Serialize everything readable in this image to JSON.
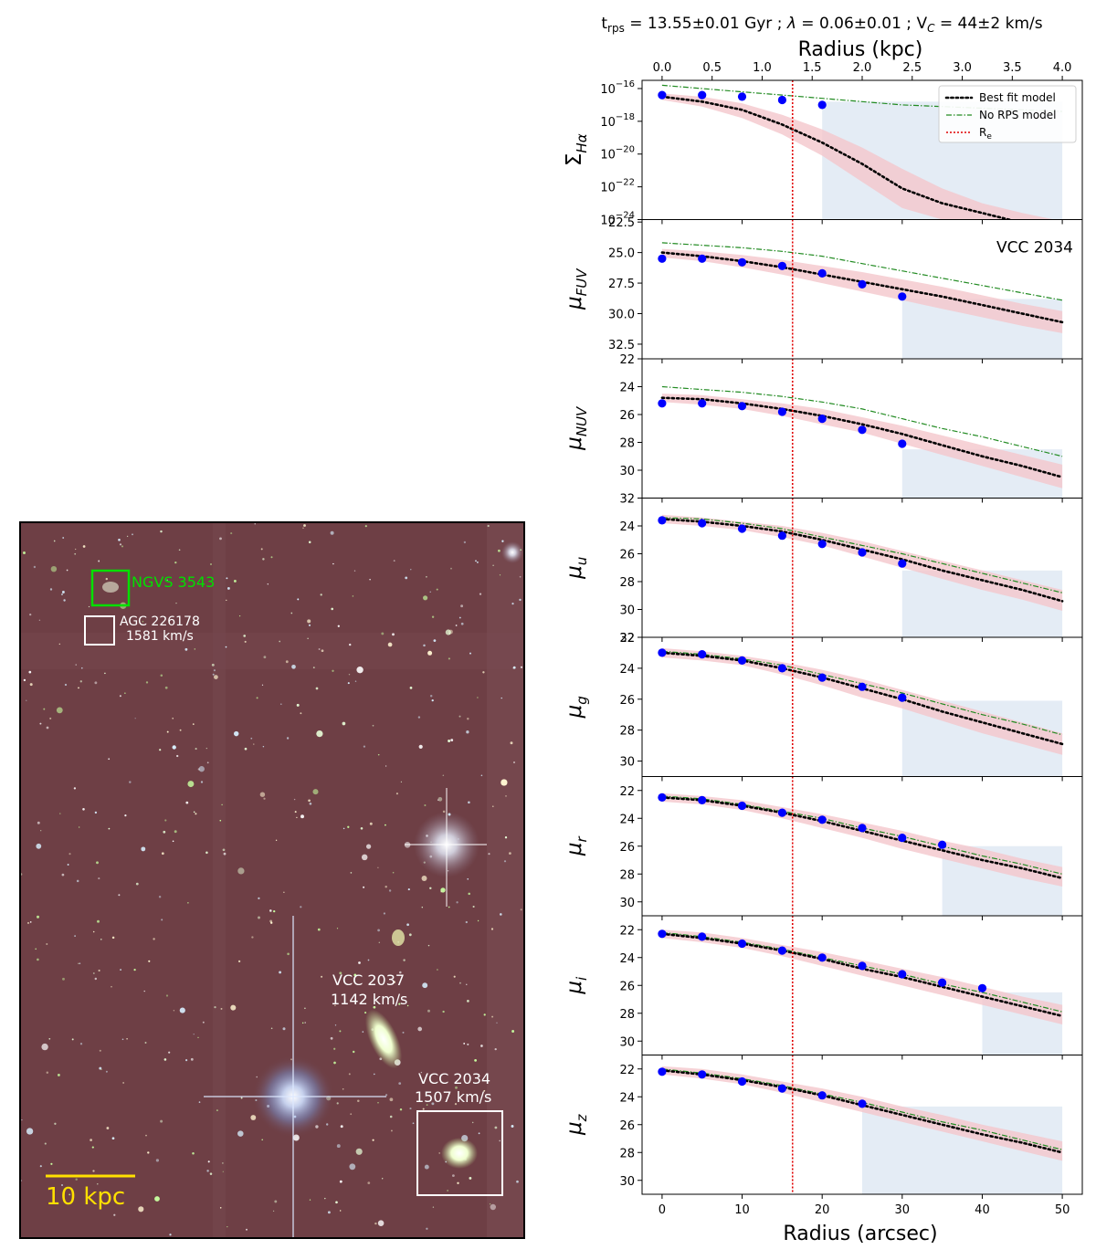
{
  "header": {
    "title": "t_rps = 13.55±0.01 Gyr ; λ = 0.06±0.01 ; V_C = 44±2 km/s",
    "title_parts": {
      "t": "t",
      "t_sub": "rps",
      "t_value": " = 13.55±0.01 Gyr ;  ",
      "lambda": "λ",
      "lambda_value": " = 0.06±0.01 ;  V",
      "v_sub": "C",
      "v_value": " = 44±2 km/s"
    }
  },
  "image_panel": {
    "scale_bar_label": "10 kpc",
    "galaxies": [
      {
        "name": "NGVS 3543",
        "velocity": "",
        "color": "#00e000"
      },
      {
        "name": "AGC 226178",
        "velocity": "1581 km/s",
        "color": "#ffffff"
      },
      {
        "name": "VCC 2037",
        "velocity": "1142 km/s",
        "color": "#ffffff"
      },
      {
        "name": "VCC 2034",
        "velocity": "1507 km/s",
        "color": "#ffffff"
      }
    ],
    "colors": {
      "background": "#6e3f45",
      "scale_bar": "#ffe000"
    }
  },
  "chart_data": {
    "type": "line",
    "x_bottom": {
      "label": "Radius (arcsec)",
      "lim": [
        -2.5,
        52.5
      ],
      "ticks": [
        0,
        10,
        20,
        30,
        40,
        50
      ]
    },
    "x_top": {
      "label": "Radius (kpc)",
      "lim": [
        -0.2,
        4.2
      ],
      "ticks": [
        "0.0",
        "0.5",
        "1.0",
        "1.5",
        "2.0",
        "2.5",
        "3.0",
        "3.5",
        "4.0"
      ]
    },
    "re_arcsec": 16.3,
    "legend": {
      "placement": "upper right",
      "entries": [
        "Best fit model",
        "No RPS model",
        "R_e"
      ]
    },
    "galaxy_label": "VCC 2034",
    "colors": {
      "data": "#0000ff",
      "best_fit": "#000000",
      "no_rps": "#228b22",
      "re_line": "#e00000",
      "uncertainty": "#f4c7cc",
      "limit_region": "#dbe6f2"
    },
    "panels": [
      {
        "id": "ha",
        "ylabel": "Σ",
        "ylabel_sub": "Hα",
        "log": true,
        "ylim": [
          -24,
          -15.5
        ],
        "ytick_labels": [
          {
            "v": -16,
            "b": "10",
            "e": "−16"
          },
          {
            "v": -18,
            "b": "10",
            "e": "−18"
          },
          {
            "v": -20,
            "b": "10",
            "e": "−20"
          },
          {
            "v": -22,
            "b": "10",
            "e": "−22"
          },
          {
            "v": -24,
            "b": "10",
            "e": "−24"
          }
        ],
        "data_x": [
          0,
          5,
          10,
          15,
          20
        ],
        "data_y": [
          -16.4,
          -16.4,
          -16.5,
          -16.7,
          -17.0
        ],
        "model_x": [
          0,
          5,
          10,
          15,
          20,
          25,
          30,
          35,
          40,
          45,
          50
        ],
        "best_fit": [
          -16.5,
          -16.8,
          -17.3,
          -18.2,
          -19.3,
          -20.6,
          -22.1,
          -23.0,
          -23.6,
          -24.2,
          -24.7
        ],
        "band_upper": [
          -16.3,
          -16.5,
          -16.9,
          -17.6,
          -18.5,
          -19.6,
          -20.9,
          -22.1,
          -23.0,
          -23.6,
          -24.1
        ],
        "band_lower": [
          -16.7,
          -17.1,
          -17.8,
          -18.8,
          -20.1,
          -21.7,
          -23.3,
          -24.0,
          -24.4,
          -24.8,
          -25.2
        ],
        "no_rps": [
          -15.8,
          -16.0,
          -16.2,
          -16.4,
          -16.6,
          -16.8,
          -17.0,
          -17.1,
          -17.2,
          -17.3,
          -17.4
        ],
        "limit_x": [
          20,
          50
        ],
        "limit_y": -16.8
      },
      {
        "id": "fuv",
        "ylabel": "μ",
        "ylabel_sub": "FUV",
        "log": false,
        "ylim": [
          33.7,
          22.3
        ],
        "ytick_labels": [
          {
            "v": 22.5,
            "t": "22.5"
          },
          {
            "v": 25,
            "t": "25.0"
          },
          {
            "v": 27.5,
            "t": "27.5"
          },
          {
            "v": 30,
            "t": "30.0"
          },
          {
            "v": 32.5,
            "t": "32.5"
          }
        ],
        "data_x": [
          0,
          5,
          10,
          15,
          20,
          25,
          30
        ],
        "data_y": [
          25.5,
          25.5,
          25.8,
          26.1,
          26.7,
          27.6,
          28.6
        ],
        "model_x": [
          0,
          5,
          10,
          15,
          20,
          25,
          30,
          35,
          40,
          45,
          50
        ],
        "best_fit": [
          25.0,
          25.3,
          25.7,
          26.2,
          26.8,
          27.4,
          28.0,
          28.6,
          29.3,
          30.0,
          30.7
        ],
        "band_upper": [
          24.7,
          24.9,
          25.2,
          25.6,
          26.1,
          26.6,
          27.2,
          27.8,
          28.5,
          29.2,
          29.8
        ],
        "band_lower": [
          25.4,
          25.7,
          26.2,
          26.8,
          27.5,
          28.2,
          28.9,
          29.6,
          30.3,
          31.0,
          31.6
        ],
        "no_rps": [
          24.2,
          24.4,
          24.6,
          24.9,
          25.3,
          25.9,
          26.5,
          27.1,
          27.7,
          28.3,
          28.9
        ],
        "limit_x": [
          30,
          50
        ],
        "limit_y": 28.8
      },
      {
        "id": "nuv",
        "ylabel": "μ",
        "ylabel_sub": "NUV",
        "log": false,
        "ylim": [
          32,
          22
        ],
        "ytick_labels": [
          {
            "v": 22,
            "t": "22"
          },
          {
            "v": 24,
            "t": "24"
          },
          {
            "v": 26,
            "t": "26"
          },
          {
            "v": 28,
            "t": "28"
          },
          {
            "v": 30,
            "t": "30"
          },
          {
            "v": 32,
            "t": "32"
          }
        ],
        "data_x": [
          0,
          5,
          10,
          15,
          20,
          25,
          30
        ],
        "data_y": [
          25.2,
          25.2,
          25.4,
          25.8,
          26.3,
          27.1,
          28.1
        ],
        "model_x": [
          0,
          5,
          10,
          15,
          20,
          25,
          30,
          35,
          40,
          45,
          50
        ],
        "best_fit": [
          24.8,
          24.9,
          25.2,
          25.6,
          26.1,
          26.7,
          27.4,
          28.2,
          29.0,
          29.7,
          30.5
        ],
        "band_upper": [
          24.5,
          24.6,
          24.9,
          25.2,
          25.6,
          26.2,
          26.8,
          27.5,
          28.2,
          28.9,
          29.6
        ],
        "band_lower": [
          25.1,
          25.3,
          25.6,
          26.1,
          26.7,
          27.3,
          28.1,
          28.9,
          29.7,
          30.5,
          31.3
        ],
        "no_rps": [
          24.0,
          24.2,
          24.4,
          24.7,
          25.1,
          25.6,
          26.3,
          27.0,
          27.6,
          28.3,
          29.0
        ],
        "limit_x": [
          30,
          50
        ],
        "limit_y": 28.5
      },
      {
        "id": "u",
        "ylabel": "μ",
        "ylabel_sub": "u",
        "log": false,
        "ylim": [
          32,
          22
        ],
        "ytick_labels": [
          {
            "v": 24,
            "t": "24"
          },
          {
            "v": 26,
            "t": "26"
          },
          {
            "v": 28,
            "t": "28"
          },
          {
            "v": 30,
            "t": "30"
          },
          {
            "v": 32,
            "t": "32"
          }
        ],
        "data_x": [
          0,
          5,
          10,
          15,
          20,
          25,
          30
        ],
        "data_y": [
          23.6,
          23.8,
          24.2,
          24.7,
          25.3,
          25.9,
          26.7
        ],
        "model_x": [
          0,
          5,
          10,
          15,
          20,
          25,
          30,
          35,
          40,
          45,
          50
        ],
        "best_fit": [
          23.5,
          23.7,
          24.0,
          24.4,
          25.0,
          25.7,
          26.4,
          27.2,
          27.9,
          28.6,
          29.4
        ],
        "band_upper": [
          23.2,
          23.4,
          23.7,
          24.0,
          24.5,
          25.1,
          25.8,
          26.5,
          27.2,
          27.9,
          28.6
        ],
        "band_lower": [
          23.8,
          24.0,
          24.3,
          24.8,
          25.4,
          26.2,
          27.0,
          27.8,
          28.6,
          29.3,
          30.1
        ],
        "no_rps": [
          23.4,
          23.5,
          23.8,
          24.2,
          24.8,
          25.4,
          26.0,
          26.7,
          27.4,
          28.1,
          28.8
        ],
        "limit_x": [
          30,
          50
        ],
        "limit_y": 27.2
      },
      {
        "id": "g",
        "ylabel": "μ",
        "ylabel_sub": "g",
        "log": false,
        "ylim": [
          31,
          22
        ],
        "ytick_labels": [
          {
            "v": 22,
            "t": "22"
          },
          {
            "v": 24,
            "t": "24"
          },
          {
            "v": 26,
            "t": "26"
          },
          {
            "v": 28,
            "t": "28"
          },
          {
            "v": 30,
            "t": "30"
          }
        ],
        "data_x": [
          0,
          5,
          10,
          15,
          20,
          25,
          30
        ],
        "data_y": [
          23.0,
          23.1,
          23.5,
          24.0,
          24.6,
          25.2,
          25.9
        ],
        "model_x": [
          0,
          5,
          10,
          15,
          20,
          25,
          30,
          35,
          40,
          45,
          50
        ],
        "best_fit": [
          23.0,
          23.2,
          23.5,
          24.0,
          24.6,
          25.3,
          26.0,
          26.8,
          27.5,
          28.2,
          28.9
        ],
        "band_upper": [
          22.7,
          22.9,
          23.2,
          23.6,
          24.1,
          24.7,
          25.4,
          26.1,
          26.8,
          27.5,
          28.2
        ],
        "band_lower": [
          23.3,
          23.5,
          23.8,
          24.4,
          25.1,
          25.9,
          26.6,
          27.4,
          28.2,
          28.9,
          29.6
        ],
        "no_rps": [
          22.9,
          23.1,
          23.4,
          23.8,
          24.4,
          25.0,
          25.6,
          26.3,
          27.0,
          27.6,
          28.3
        ],
        "limit_x": [
          30,
          50
        ],
        "limit_y": 26.1
      },
      {
        "id": "r",
        "ylabel": "μ",
        "ylabel_sub": "r",
        "log": false,
        "ylim": [
          31,
          21
        ],
        "ytick_labels": [
          {
            "v": 22,
            "t": "22"
          },
          {
            "v": 24,
            "t": "24"
          },
          {
            "v": 26,
            "t": "26"
          },
          {
            "v": 28,
            "t": "28"
          },
          {
            "v": 30,
            "t": "30"
          }
        ],
        "data_x": [
          0,
          5,
          10,
          15,
          20,
          25,
          30,
          35
        ],
        "data_y": [
          22.5,
          22.7,
          23.1,
          23.6,
          24.1,
          24.7,
          25.4,
          25.9
        ],
        "model_x": [
          0,
          5,
          10,
          15,
          20,
          25,
          30,
          35,
          40,
          45,
          50
        ],
        "best_fit": [
          22.5,
          22.7,
          23.1,
          23.6,
          24.2,
          24.9,
          25.6,
          26.3,
          27.0,
          27.6,
          28.3
        ],
        "band_upper": [
          22.2,
          22.4,
          22.7,
          23.2,
          23.7,
          24.3,
          24.9,
          25.6,
          26.2,
          26.9,
          27.5
        ],
        "band_lower": [
          22.8,
          23.0,
          23.4,
          24.0,
          24.7,
          25.4,
          26.2,
          26.9,
          27.6,
          28.3,
          28.9
        ],
        "no_rps": [
          22.4,
          22.6,
          23.0,
          23.5,
          24.0,
          24.7,
          25.3,
          26.0,
          26.7,
          27.3,
          28.0
        ],
        "limit_x": [
          35,
          50
        ],
        "limit_y": 26.0
      },
      {
        "id": "i",
        "ylabel": "μ",
        "ylabel_sub": "i",
        "log": false,
        "ylim": [
          31,
          21
        ],
        "ytick_labels": [
          {
            "v": 22,
            "t": "22"
          },
          {
            "v": 24,
            "t": "24"
          },
          {
            "v": 26,
            "t": "26"
          },
          {
            "v": 28,
            "t": "28"
          },
          {
            "v": 30,
            "t": "30"
          }
        ],
        "data_x": [
          0,
          5,
          10,
          15,
          20,
          25,
          30,
          35,
          40
        ],
        "data_y": [
          22.3,
          22.5,
          23.0,
          23.5,
          24.0,
          24.6,
          25.2,
          25.8,
          26.2
        ],
        "model_x": [
          0,
          5,
          10,
          15,
          20,
          25,
          30,
          35,
          40,
          45,
          50
        ],
        "best_fit": [
          22.3,
          22.6,
          23.0,
          23.5,
          24.1,
          24.8,
          25.4,
          26.1,
          26.8,
          27.5,
          28.2
        ],
        "band_upper": [
          22.0,
          22.2,
          22.6,
          23.1,
          23.6,
          24.2,
          24.8,
          25.4,
          26.1,
          26.8,
          27.4
        ],
        "band_lower": [
          22.6,
          22.9,
          23.3,
          23.9,
          24.6,
          25.3,
          26.0,
          26.7,
          27.4,
          28.1,
          28.8
        ],
        "no_rps": [
          22.2,
          22.5,
          22.9,
          23.4,
          24.0,
          24.6,
          25.2,
          25.9,
          26.5,
          27.2,
          27.9
        ],
        "limit_x": [
          40,
          50
        ],
        "limit_y": 26.5
      },
      {
        "id": "z",
        "ylabel": "μ",
        "ylabel_sub": "z",
        "log": false,
        "ylim": [
          31,
          21
        ],
        "ytick_labels": [
          {
            "v": 22,
            "t": "22"
          },
          {
            "v": 24,
            "t": "24"
          },
          {
            "v": 26,
            "t": "26"
          },
          {
            "v": 28,
            "t": "28"
          },
          {
            "v": 30,
            "t": "30"
          }
        ],
        "data_x": [
          0,
          5,
          10,
          15,
          20,
          25
        ],
        "data_y": [
          22.2,
          22.4,
          22.9,
          23.4,
          23.9,
          24.5
        ],
        "model_x": [
          0,
          5,
          10,
          15,
          20,
          25,
          30,
          35,
          40,
          45,
          50
        ],
        "best_fit": [
          22.1,
          22.4,
          22.8,
          23.3,
          23.9,
          24.6,
          25.3,
          26.0,
          26.7,
          27.3,
          28.0
        ],
        "band_upper": [
          21.8,
          22.0,
          22.4,
          22.9,
          23.4,
          24.0,
          24.7,
          25.3,
          26.0,
          26.6,
          27.2
        ],
        "band_lower": [
          22.4,
          22.7,
          23.1,
          23.7,
          24.4,
          25.1,
          25.8,
          26.5,
          27.2,
          27.9,
          28.6
        ],
        "no_rps": [
          22.0,
          22.3,
          22.7,
          23.2,
          23.8,
          24.4,
          25.1,
          25.8,
          26.4,
          27.1,
          27.8
        ],
        "limit_x": [
          25,
          50
        ],
        "limit_y": 24.7
      }
    ]
  }
}
